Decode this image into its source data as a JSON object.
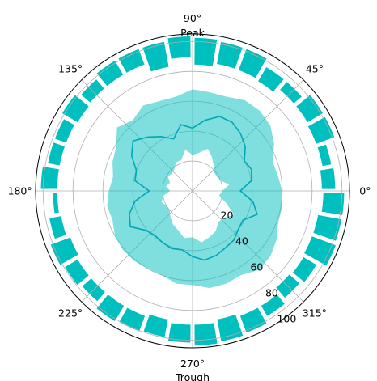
{
  "chart_data": {
    "type": "polar",
    "angle_ticks": [
      {
        "deg": 0,
        "label": "0$^\\circ$"
      },
      {
        "deg": 45,
        "label": "45$^\\circ$"
      },
      {
        "deg": 90,
        "label": "90$^\\circ$"
      },
      {
        "deg": 135,
        "label": "135$^\\circ$"
      },
      {
        "deg": 180,
        "label": "180$^\\circ$"
      },
      {
        "deg": 225,
        "label": "225$^\\circ$"
      },
      {
        "deg": 270,
        "label": "270$^\\circ$"
      },
      {
        "deg": 315,
        "label": "315$^\\circ$"
      }
    ],
    "angle_ticks_display": [
      "0°",
      "45°",
      "90°",
      "135°",
      "180°",
      "225°",
      "270°",
      "315°"
    ],
    "annotations": {
      "peak": "Peak",
      "trough": "Trough"
    },
    "radial_ticks": [
      20,
      40,
      60,
      80,
      100
    ],
    "radial_tick_labels": [
      "20",
      "40",
      "60",
      "80",
      "100"
    ],
    "r_max": 105,
    "radial_label_angle_deg": -60,
    "grid": true,
    "colors": {
      "bars": "#00bfbf",
      "band_fill": "#00bfbf",
      "band_alpha": 0.5,
      "line": "#00a8b5",
      "grid": "#b0b0b0"
    },
    "theta_deg": [
      0,
      10,
      20,
      30,
      40,
      50,
      60,
      70,
      80,
      90,
      100,
      110,
      120,
      130,
      140,
      150,
      160,
      170,
      180,
      190,
      200,
      210,
      220,
      230,
      240,
      250,
      260,
      270,
      280,
      290,
      300,
      310,
      320,
      330,
      340,
      350
    ],
    "mean": [
      32,
      40,
      42,
      40,
      46,
      50,
      53,
      53,
      48,
      42,
      45,
      37,
      42,
      47,
      52,
      47,
      40,
      39,
      29,
      39,
      45,
      48,
      41,
      39,
      40,
      41,
      40,
      44,
      47,
      46,
      44,
      43,
      40,
      39,
      46,
      41
    ],
    "upper": [
      60,
      58,
      57,
      63,
      68,
      70,
      70,
      67,
      67,
      68,
      64,
      64,
      66,
      62,
      66,
      59,
      57,
      54,
      56,
      58,
      57,
      60,
      61,
      61,
      60,
      60,
      63,
      63,
      66,
      66,
      65,
      69,
      68,
      65,
      61,
      61
    ],
    "lower": [
      20,
      25,
      20,
      19,
      19,
      22,
      26,
      30,
      26,
      24,
      28,
      22,
      22,
      19,
      18,
      19,
      16,
      18,
      15,
      20,
      22,
      20,
      20,
      23,
      26,
      28,
      32,
      31,
      35,
      33,
      31,
      27,
      28,
      32,
      24,
      18
    ],
    "bars": {
      "theta_deg": [
        5,
        15,
        25,
        35,
        45,
        55,
        65,
        75,
        85,
        95,
        105,
        115,
        125,
        135,
        145,
        155,
        165,
        175,
        185,
        195,
        205,
        215,
        225,
        235,
        245,
        255,
        265,
        275,
        285,
        295,
        305,
        315,
        325,
        335,
        345,
        355
      ],
      "width_deg": 9,
      "bottom": [
        86,
        88,
        88,
        89,
        89,
        85,
        86,
        86,
        84,
        89,
        84,
        90,
        90,
        90,
        89,
        90,
        90,
        90,
        90,
        89,
        87,
        89,
        89,
        89,
        89,
        87,
        89,
        89,
        87,
        89,
        89,
        85,
        86,
        85,
        85,
        87
      ],
      "top": [
        96,
        95,
        102,
        102,
        97,
        97,
        102,
        102,
        103,
        104,
        102,
        102,
        102,
        99,
        102,
        99,
        99,
        102,
        94,
        98,
        102,
        100,
        98,
        102,
        101,
        100,
        102,
        104,
        103,
        102,
        98,
        95,
        97,
        103,
        102,
        102
      ]
    }
  }
}
